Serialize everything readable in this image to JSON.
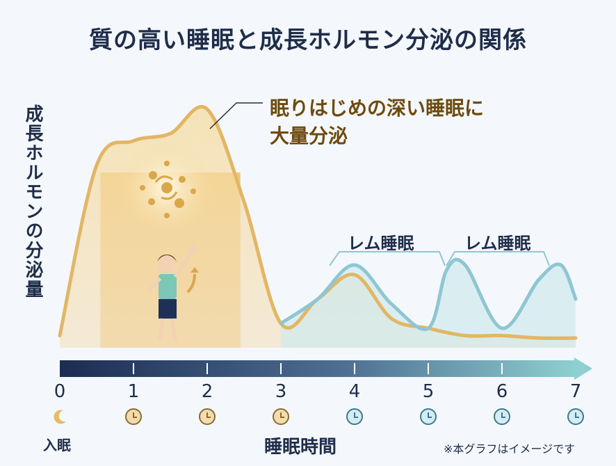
{
  "title": "質の高い睡眠と成長ホルモン分泌の関係",
  "callout": {
    "line1": "眠りはじめの深い睡眠に",
    "line2": "大量分泌"
  },
  "rem_labels": [
    "レム睡眠",
    "レム睡眠"
  ],
  "start_label": "入眠",
  "note": "※本グラフはイメージです",
  "colors": {
    "gold": "#e2b665",
    "gold_fill": "#f1cd86",
    "teal": "#8fc6d3",
    "teal_fill": "#cfe9ee",
    "navy": "#1f3057"
  },
  "icons": {
    "start": "moon-icon",
    "hours": "clock-icon",
    "illustration": "child-growing-icon"
  },
  "chart_data": {
    "type": "line",
    "ylabel": "成長ホルモンの分泌量",
    "xlabel": "睡眠時間",
    "x_ticks": [
      "0",
      "1",
      "2",
      "3",
      "4",
      "5",
      "6",
      "7"
    ],
    "xlim": [
      0,
      7
    ],
    "ylim": [
      0,
      100
    ],
    "series": [
      {
        "name": "",
        "x": [
          0,
          0.5,
          1,
          1.5,
          2,
          2.5,
          3,
          3.5,
          4,
          4.5,
          5,
          5.5,
          6,
          6.5,
          7
        ],
        "values": [
          5,
          75,
          85,
          88,
          98,
          60,
          10,
          20,
          30,
          12,
          8,
          5,
          5,
          4,
          4
        ]
      },
      {
        "name": "",
        "x": [
          3,
          3.5,
          4,
          4.5,
          5,
          5.25,
          5.5,
          6,
          6.5,
          6.8,
          7
        ],
        "values": [
          10,
          20,
          34,
          18,
          8,
          32,
          34,
          8,
          28,
          34,
          20
        ]
      }
    ]
  }
}
